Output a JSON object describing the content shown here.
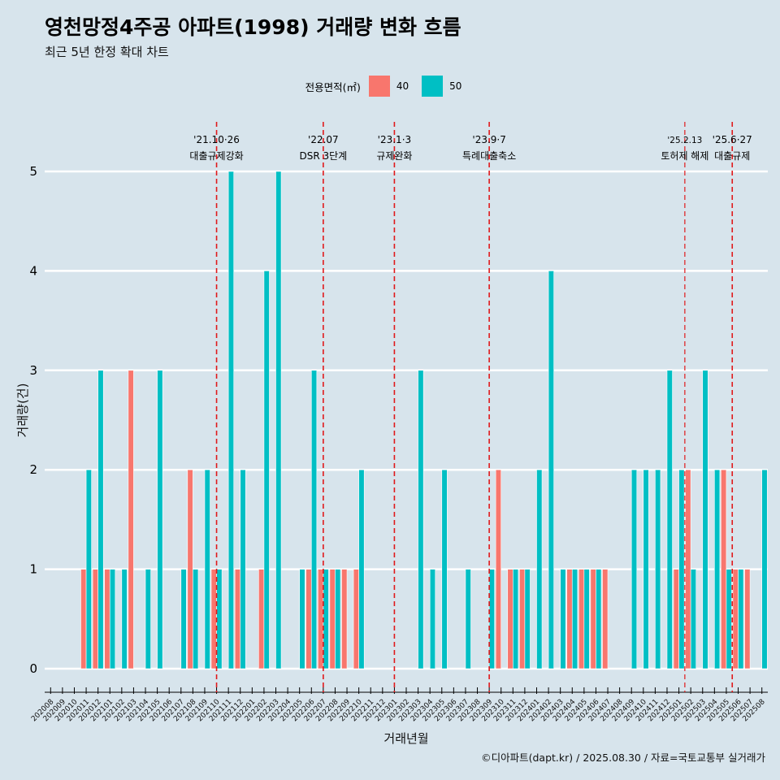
{
  "title": "영천망정4주공 아파트(1998) 거래량 변화 흐름",
  "subtitle": "최근 5년 한정 확대 차트",
  "legend": {
    "title": "전용면적(㎡)",
    "items": [
      {
        "label": "40",
        "color": "#F8766D"
      },
      {
        "label": "50",
        "color": "#00BFC4"
      }
    ]
  },
  "caption": "©디아파트(dapt.kr) / 2025.08.30 / 자료=국토교통부 실거래가",
  "chart_data": {
    "type": "bar",
    "title": "영천망정4주공 아파트(1998) 거래량 변화 흐름",
    "xlabel": "거래년월",
    "ylabel": "거래량(건)",
    "ylim": [
      0,
      5
    ],
    "yticks": [
      0,
      1,
      2,
      3,
      4,
      5
    ],
    "grid": true,
    "legend_position": "top",
    "categories": [
      "202008",
      "202009",
      "202010",
      "202011",
      "202012",
      "202101",
      "202102",
      "202103",
      "202104",
      "202105",
      "202106",
      "202107",
      "202108",
      "202109",
      "202110",
      "202111",
      "202112",
      "202201",
      "202202",
      "202203",
      "202204",
      "202205",
      "202206",
      "202207",
      "202208",
      "202209",
      "202210",
      "202211",
      "202212",
      "202301",
      "202302",
      "202303",
      "202304",
      "202305",
      "202306",
      "202307",
      "202308",
      "202309",
      "202310",
      "202311",
      "202312",
      "202401",
      "202402",
      "202403",
      "202404",
      "202405",
      "202406",
      "202407",
      "202408",
      "202409",
      "202410",
      "202411",
      "202412",
      "202501",
      "202502",
      "202503",
      "202504",
      "202505",
      "202506",
      "202507",
      "202508"
    ],
    "series": [
      {
        "name": "40",
        "color": "#F8766D",
        "values": [
          0,
          0,
          0,
          1,
          1,
          1,
          0,
          3,
          0,
          0,
          0,
          0,
          2,
          0,
          1,
          0,
          1,
          0,
          1,
          0,
          0,
          0,
          1,
          1,
          1,
          1,
          1,
          0,
          0,
          0,
          0,
          0,
          0,
          0,
          0,
          0,
          0,
          0,
          2,
          1,
          1,
          0,
          0,
          0,
          1,
          1,
          1,
          1,
          0,
          0,
          0,
          0,
          0,
          1,
          2,
          0,
          0,
          2,
          1,
          1,
          0
        ]
      },
      {
        "name": "50",
        "color": "#00BFC4",
        "values": [
          0,
          0,
          0,
          2,
          3,
          1,
          1,
          0,
          1,
          3,
          0,
          1,
          1,
          2,
          1,
          5,
          2,
          0,
          4,
          5,
          0,
          1,
          3,
          1,
          1,
          0,
          2,
          0,
          0,
          0,
          0,
          3,
          1,
          2,
          0,
          1,
          0,
          1,
          0,
          1,
          1,
          2,
          4,
          1,
          1,
          1,
          1,
          0,
          0,
          2,
          2,
          2,
          3,
          2,
          1,
          3,
          2,
          1,
          1,
          0,
          2
        ]
      }
    ],
    "events": [
      {
        "index": 14.5,
        "date": "'21.10·26",
        "label": "대출규제강화"
      },
      {
        "index": 23.5,
        "date": "'22.07",
        "label": "DSR 3단계"
      },
      {
        "index": 29.5,
        "date": "'23.1·3",
        "label": "규제완화"
      },
      {
        "index": 37.5,
        "date": "'23.9·7",
        "label": "특례대출축소"
      },
      {
        "index": 54.0,
        "date": "'25.2.13",
        "label": "토허제 해제"
      },
      {
        "index": 58.0,
        "date": "'25.6·27",
        "label": "대출규제"
      }
    ]
  }
}
